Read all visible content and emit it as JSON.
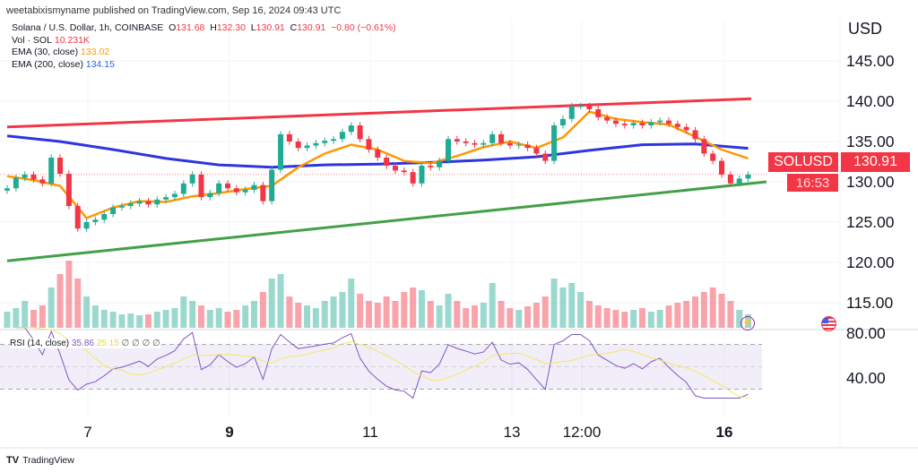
{
  "published": "weetabixismyname published on TradingView.com, Sep 16, 2024 09:43 UTC",
  "legend": {
    "symbol": "Solana / U.S. Dollar, 1h, COINBASE",
    "o_label": "O",
    "o": "131.68",
    "h_label": "H",
    "h": "132.30",
    "l_label": "L",
    "l": "130.91",
    "c_label": "C",
    "c": "130.91",
    "change": "−0.80 (−0.61%)",
    "vol_label": "Vol · SOL",
    "vol": "10.231K",
    "ema30_label": "EMA (30, close)",
    "ema30": "133.02",
    "ema200_label": "EMA (200, close)",
    "ema200": "134.15"
  },
  "rsi_legend": {
    "label": "RSI (14, close)",
    "rsi": "35.86",
    "ma": "25.15",
    "extra": "∅ ∅ ∅ ∅"
  },
  "currency": "USD",
  "symbol_tag": "SOLUSD",
  "last_price": "130.91",
  "countdown": "16:53",
  "logo": "TradingView",
  "icons": {
    "event_lightning": "lightning-icon",
    "us_flag": "us-flag-icon"
  },
  "colors": {
    "up": "#22ab94",
    "down": "#f23645",
    "ema30": "#ff9800",
    "ema200": "#2e35e0",
    "resistance": "#f23645",
    "support": "#43a047",
    "rsi": "#7e57c2",
    "rsi_ma": "#f5e663"
  },
  "chart_data": {
    "type": "candlestick",
    "price_axis": {
      "ticks": [
        "145.00",
        "140.00",
        "135.00",
        "130.00",
        "125.00",
        "120.00",
        "115.00"
      ],
      "range": [
        112,
        148
      ]
    },
    "rsi_axis": {
      "ticks": [
        "80.00",
        "40.00"
      ],
      "bands": [
        70,
        50,
        30
      ]
    },
    "x_ticks": [
      {
        "label": "7",
        "bold": false
      },
      {
        "label": "9",
        "bold": true
      },
      {
        "label": "11",
        "bold": false
      },
      {
        "label": "13",
        "bold": false
      },
      {
        "label": "12:00",
        "bold": false
      },
      {
        "label": "16",
        "bold": true
      }
    ],
    "closes": [
      129.2,
      130.5,
      130.9,
      130.3,
      129.8,
      133.0,
      131.0,
      127.0,
      124.2,
      125.0,
      125.3,
      126.0,
      126.8,
      127.0,
      127.3,
      127.6,
      127.2,
      127.8,
      128.1,
      128.5,
      129.8,
      130.9,
      128.1,
      128.6,
      129.8,
      129.2,
      128.7,
      129.0,
      129.6,
      127.6,
      131.5,
      135.9,
      135.0,
      134.2,
      134.5,
      134.8,
      135.1,
      135.3,
      136.2,
      137.0,
      135.3,
      134.0,
      133.0,
      132.0,
      131.4,
      131.2,
      129.8,
      132.0,
      131.8,
      132.6,
      135.3,
      135.0,
      134.8,
      134.6,
      134.8,
      135.9,
      134.8,
      134.5,
      134.6,
      134.2,
      133.5,
      132.6,
      137.0,
      137.8,
      139.4,
      139.4,
      139.0,
      138.0,
      137.6,
      137.2,
      137.0,
      137.3,
      137.0,
      137.4,
      137.6,
      137.2,
      136.8,
      136.4,
      135.3,
      133.5,
      132.6,
      130.9,
      129.8,
      130.4,
      130.91
    ],
    "volume": [
      18,
      22,
      30,
      20,
      25,
      45,
      60,
      75,
      55,
      35,
      25,
      20,
      18,
      15,
      16,
      14,
      15,
      18,
      20,
      22,
      35,
      30,
      25,
      20,
      22,
      18,
      20,
      25,
      30,
      40,
      55,
      60,
      35,
      28,
      25,
      22,
      30,
      35,
      40,
      55,
      38,
      30,
      28,
      35,
      30,
      40,
      45,
      42,
      30,
      25,
      38,
      30,
      22,
      25,
      28,
      50,
      30,
      22,
      20,
      24,
      28,
      35,
      55,
      45,
      50,
      40,
      30,
      25,
      22,
      20,
      18,
      20,
      22,
      18,
      20,
      25,
      28,
      30,
      35,
      40,
      45,
      38,
      30,
      20,
      15
    ],
    "ema30": [
      130.7,
      130.2,
      129.5,
      125.5,
      126.8,
      127.6,
      127.5,
      128.2,
      128.6,
      129.1,
      129.5,
      131.8,
      133.5,
      134.6,
      134.0,
      132.6,
      132.3,
      133.2,
      134.3,
      135.0,
      134.2,
      135.5,
      138.7,
      137.8,
      137.4,
      137.1,
      135.6,
      134.0,
      132.9
    ],
    "ema200": [
      135.7,
      135.0,
      134.0,
      132.9,
      132.1,
      131.8,
      132.1,
      132.2,
      132.4,
      132.7,
      133.1,
      133.9,
      134.6,
      134.7,
      134.15
    ],
    "resistance_line": [
      136.8,
      140.3
    ],
    "support_line": [
      120.2,
      130.0
    ]
  }
}
